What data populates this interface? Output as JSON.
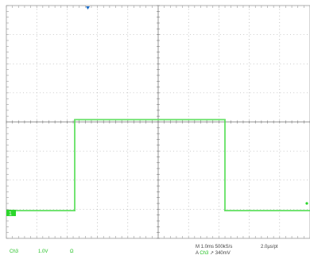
{
  "scope": {
    "colors": {
      "trace": "#2bd62b",
      "grid": "#9a9a9a",
      "center_axis": "#7a7a7a",
      "trigger_marker": "#1a6cc9",
      "background": "#ffffff"
    },
    "channel_marker": "1",
    "readouts": {
      "ch_label": "Ch3",
      "ch_scale": "1.0V",
      "ch_coupling": "Ω",
      "timebase": "M 1.0ms 500kS/s",
      "pts": "2.0µs/pt",
      "trigger_src_prefix": "A",
      "trigger_src": "Ch3",
      "trigger_slope": "↗",
      "trigger_level": "340mV"
    }
  },
  "chart_data": {
    "type": "line",
    "title": "",
    "xlabel": "",
    "ylabel": "",
    "divisions": {
      "x": 10,
      "y": 8
    },
    "xlim": [
      0,
      10
    ],
    "ylim": [
      -4,
      4
    ],
    "grid": true,
    "series": [
      {
        "x": [
          0,
          2.25,
          2.25,
          7.2,
          7.2,
          10
        ],
        "values": [
          -3.05,
          -3.05,
          0.08,
          0.08,
          -3.05,
          -3.05
        ]
      }
    ]
  }
}
